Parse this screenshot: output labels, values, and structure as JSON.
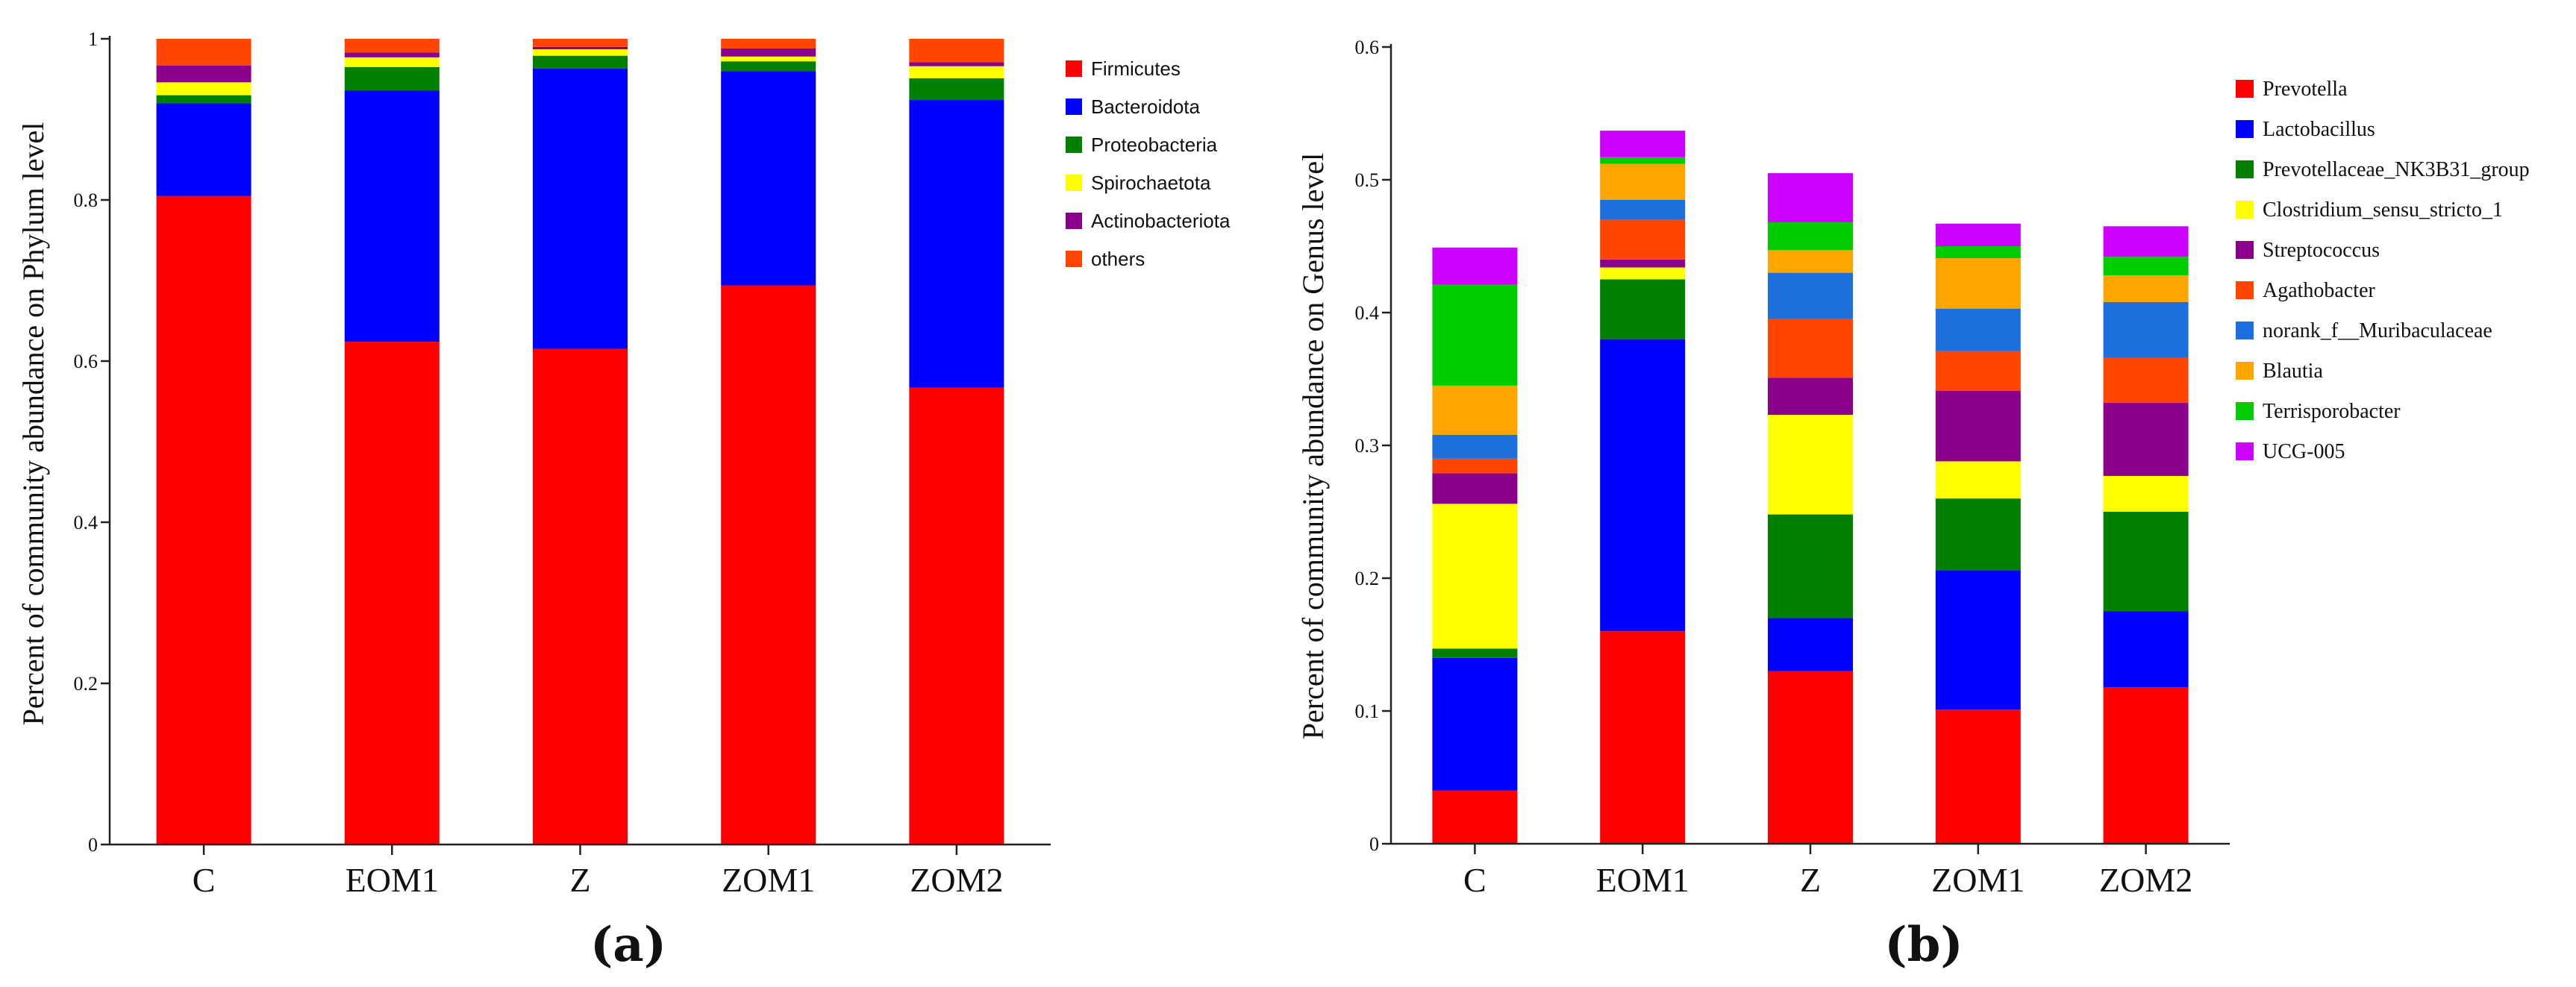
{
  "panels": [
    {
      "label": "(a)",
      "chart_data": {
        "type": "bar",
        "stacked": true,
        "categories": [
          "C",
          "EOM1",
          "Z",
          "ZOM1",
          "ZOM2"
        ],
        "ylabel": "Percent of community abundance on Phylum level",
        "xlabel": "",
        "ylim": [
          0,
          1
        ],
        "yticks": [
          0,
          0.2,
          0.4,
          0.6,
          0.8,
          1
        ],
        "ytick_labels": [
          "0",
          "0.2",
          "0.4",
          "0.6",
          "0.8",
          "1"
        ],
        "grid": false,
        "legend_position": "right",
        "series": [
          {
            "name": "Firmicutes",
            "color": "#ff0000",
            "values": [
              0.805,
              0.624,
              0.615,
              0.694,
              0.567
            ]
          },
          {
            "name": "Bacteroidota",
            "color": "#0000ff",
            "values": [
              0.115,
              0.312,
              0.348,
              0.266,
              0.357
            ]
          },
          {
            "name": "Proteobacteria",
            "color": "#008000",
            "values": [
              0.01,
              0.029,
              0.016,
              0.012,
              0.027
            ]
          },
          {
            "name": "Spirochaetota",
            "color": "#ffff00",
            "values": [
              0.016,
              0.012,
              0.008,
              0.006,
              0.015
            ]
          },
          {
            "name": "Actinobacteriota",
            "color": "#8b008b",
            "values": [
              0.021,
              0.006,
              0.003,
              0.01,
              0.005
            ]
          },
          {
            "name": "others",
            "color": "#ff4500",
            "values": [
              0.033,
              0.017,
              0.01,
              0.012,
              0.029
            ]
          }
        ]
      }
    },
    {
      "label": "(b)",
      "chart_data": {
        "type": "bar",
        "stacked": true,
        "categories": [
          "C",
          "EOM1",
          "Z",
          "ZOM1",
          "ZOM2"
        ],
        "ylabel": "Percent of community abundance on Genus level",
        "xlabel": "",
        "ylim": [
          0,
          0.6
        ],
        "yticks": [
          0,
          0.1,
          0.2,
          0.3,
          0.4,
          0.5,
          0.6
        ],
        "ytick_labels": [
          "0",
          "0.1",
          "0.2",
          "0.3",
          "0.4",
          "0.5",
          "0.6"
        ],
        "grid": false,
        "legend_position": "right",
        "series": [
          {
            "name": "Prevotella",
            "color": "#ff0000",
            "values": [
              0.04,
              0.16,
              0.13,
              0.101,
              0.118
            ]
          },
          {
            "name": "Lactobacillus",
            "color": "#0000ff",
            "values": [
              0.1,
              0.22,
              0.04,
              0.105,
              0.057
            ]
          },
          {
            "name": "Prevotellaceae_NK3B31_group",
            "color": "#008000",
            "values": [
              0.007,
              0.045,
              0.078,
              0.054,
              0.075
            ]
          },
          {
            "name": "Clostridium_sensu_stricto_1",
            "color": "#ffff00",
            "values": [
              0.109,
              0.009,
              0.075,
              0.028,
              0.027
            ]
          },
          {
            "name": "Streptococcus",
            "color": "#8b008b",
            "values": [
              0.023,
              0.006,
              0.028,
              0.053,
              0.055
            ]
          },
          {
            "name": "Agathobacter",
            "color": "#ff4500",
            "values": [
              0.011,
              0.03,
              0.044,
              0.03,
              0.034
            ]
          },
          {
            "name": "norank_f__Muribaculaceae",
            "color": "#1e6fde",
            "values": [
              0.018,
              0.015,
              0.035,
              0.032,
              0.042
            ]
          },
          {
            "name": "Blautia",
            "color": "#ffa500",
            "values": [
              0.037,
              0.027,
              0.017,
              0.038,
              0.02
            ]
          },
          {
            "name": "Terrisporobacter",
            "color": "#00cc00",
            "values": [
              0.076,
              0.005,
              0.021,
              0.009,
              0.014
            ]
          },
          {
            "name": "UCG-005",
            "color": "#cc00ff",
            "values": [
              0.028,
              0.02,
              0.037,
              0.017,
              0.023
            ]
          }
        ]
      }
    }
  ]
}
